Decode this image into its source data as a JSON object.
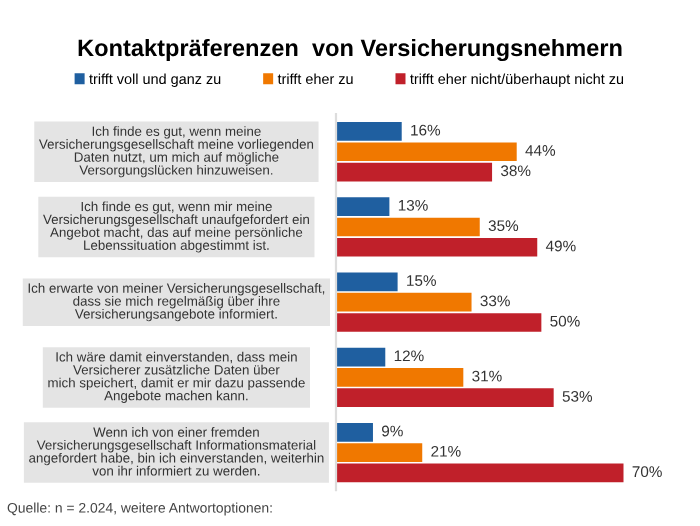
{
  "chart_data": {
    "type": "bar",
    "orientation": "horizontal",
    "title": "Kontaktpräferenzen  von Versicherungsnehmern",
    "categories": [
      "Ich finde es gut, wenn meine\nVersicherungsgesellschaft meine vorliegenden\nDaten nutzt, um mich auf mögliche\nVersorgungslücken hinzuweisen.",
      "Ich finde es gut, wenn mir meine\nVersicherungsgesellschaft unaufgefordert ein\nAngebot macht, das auf meine persönliche\nLebenssituation abgestimmt ist.",
      "Ich erwarte von meiner Versicherungsgesellschaft,\ndass sie mich regelmäßig über ihre\nVersicherungsangebote informiert.",
      "Ich wäre damit einverstanden, dass mein\nVersicherer zusätzliche Daten über\nmich speichert, damit er mir dazu passende\nAngebote machen kann.",
      "Wenn ich von einer fremden\nVersicherungsgesellschaft Informationsmaterial\nangefordert habe, bin ich einverstanden, weiterhin\nvon ihr informiert zu werden."
    ],
    "series": [
      {
        "name": "trifft voll und ganz zu",
        "color": "#1f5fa0",
        "values": [
          16,
          13,
          15,
          12,
          9
        ],
        "value_labels": [
          "16%",
          "13%",
          "15%",
          "12%",
          "9%"
        ]
      },
      {
        "name": "trifft eher zu",
        "color": "#f07800",
        "values": [
          44,
          35,
          33,
          31,
          21
        ],
        "value_labels": [
          "44%",
          "35%",
          "33%",
          "31%",
          "21%"
        ]
      },
      {
        "name": "trifft eher nicht/überhaupt nicht zu",
        "color": "#c0202a",
        "values": [
          38,
          49,
          50,
          53,
          70
        ],
        "value_labels": [
          "38%",
          "49%",
          "50%",
          "53%",
          "70%"
        ]
      }
    ],
    "legend": "top",
    "annotations": [
      "Quelle: n = 2.024, weitere Antwortoptionen:"
    ]
  }
}
